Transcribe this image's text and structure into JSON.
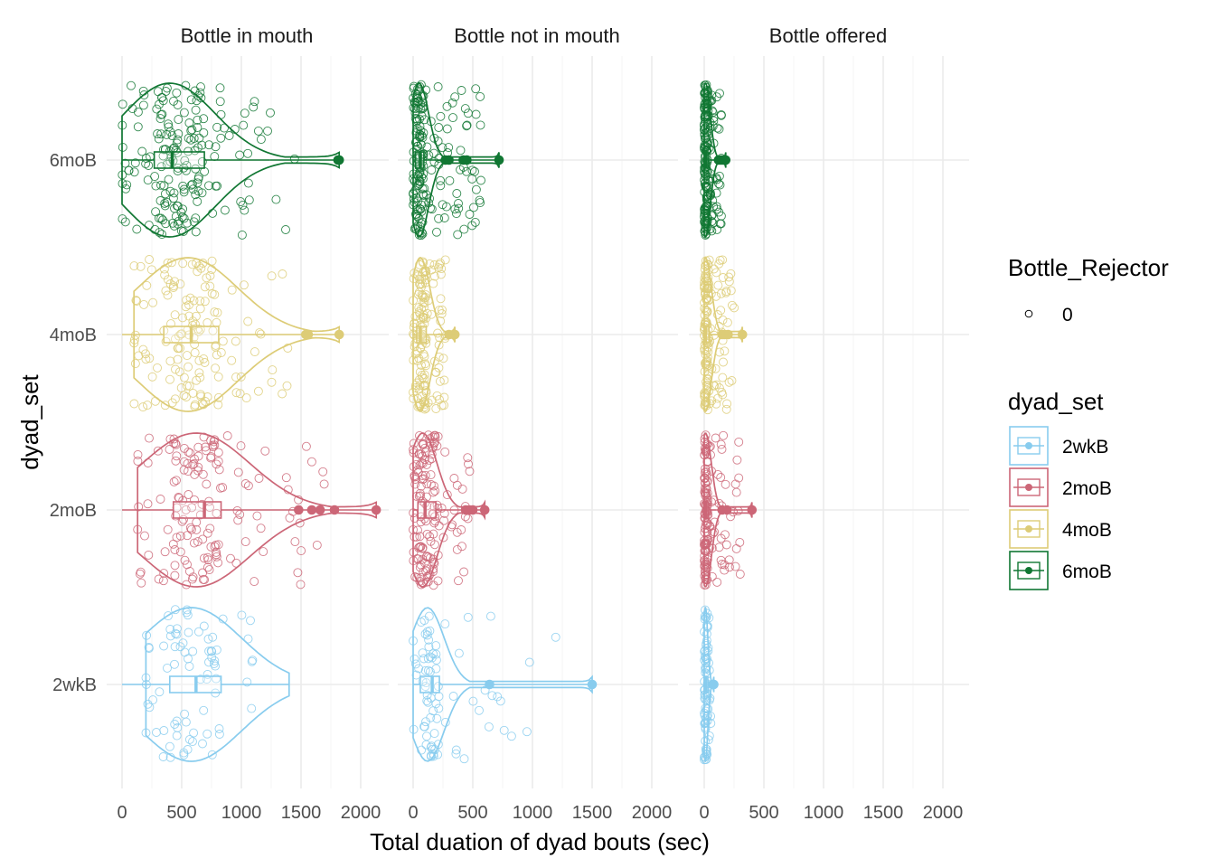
{
  "chart_data": {
    "type": "violin+box+jitter",
    "xlabel": "Total duation of dyad bouts (sec)",
    "ylabel": "dyad_set",
    "xlim": [
      0,
      2000
    ],
    "x_ticks": [
      0,
      500,
      1000,
      1500,
      2000
    ],
    "facets": [
      "Bottle in mouth",
      "Bottle not in mouth",
      "Bottle offered"
    ],
    "categories": [
      "2wkB",
      "2moB",
      "4moB",
      "6moB"
    ],
    "colors": {
      "2wkB": "#88CCEE",
      "2moB": "#CC6677",
      "4moB": "#DDCC77",
      "6moB": "#117733"
    },
    "shape_legend": {
      "title": "Bottle_Rejector",
      "items": [
        "0"
      ]
    },
    "color_legend": {
      "title": "dyad_set",
      "items": [
        "2wkB",
        "2moB",
        "4moB",
        "6moB"
      ]
    },
    "grid": true,
    "legend_position": "right",
    "series": [
      {
        "facet": "Bottle in mouth",
        "group": "6moB",
        "n": 190,
        "box": {
          "min": 0,
          "q1": 270,
          "median": 420,
          "q3": 690,
          "whisker_high": 1240
        },
        "outliers": [
          1810,
          1820
        ],
        "violin": {
          "min": 0,
          "max": 1820,
          "peak": 400,
          "spread": 380
        }
      },
      {
        "facet": "Bottle in mouth",
        "group": "4moB",
        "n": 150,
        "box": {
          "min": 0,
          "q1": 350,
          "median": 580,
          "q3": 810,
          "whisker_high": 1520
        },
        "outliers": [
          1540,
          1550,
          1560,
          1820
        ],
        "violin": {
          "min": 100,
          "max": 1820,
          "peak": 550,
          "spread": 420
        }
      },
      {
        "facet": "Bottle in mouth",
        "group": "2moB",
        "n": 150,
        "box": {
          "min": 0,
          "q1": 430,
          "median": 690,
          "q3": 830,
          "whisker_high": 1460
        },
        "outliers": [
          1480,
          1590,
          1660,
          1780,
          2130
        ],
        "violin": {
          "min": 130,
          "max": 2130,
          "peak": 620,
          "spread": 450
        }
      },
      {
        "facet": "Bottle in mouth",
        "group": "2wkB",
        "n": 80,
        "box": {
          "min": 0,
          "q1": 400,
          "median": 620,
          "q3": 830,
          "whisker_high": 1400
        },
        "outliers": [],
        "violin": {
          "min": 200,
          "max": 1400,
          "peak": 580,
          "spread": 420
        }
      },
      {
        "facet": "Bottle not in mouth",
        "group": "6moB",
        "n": 190,
        "box": {
          "min": 0,
          "q1": 20,
          "median": 60,
          "q3": 90,
          "whisker_high": 250
        },
        "outliers": [
          270,
          300,
          420,
          450,
          720
        ],
        "violin": {
          "min": 0,
          "max": 720,
          "peak": 50,
          "spread": 80
        }
      },
      {
        "facet": "Bottle not in mouth",
        "group": "4moB",
        "n": 150,
        "box": {
          "min": 0,
          "q1": 30,
          "median": 60,
          "q3": 110,
          "whisker_high": 250
        },
        "outliers": [
          300,
          350
        ],
        "violin": {
          "min": 0,
          "max": 350,
          "peak": 60,
          "spread": 80
        }
      },
      {
        "facet": "Bottle not in mouth",
        "group": "2moB",
        "n": 150,
        "box": {
          "min": 0,
          "q1": 40,
          "median": 100,
          "q3": 190,
          "whisker_high": 400
        },
        "outliers": [
          440,
          470,
          500,
          600
        ],
        "violin": {
          "min": 0,
          "max": 600,
          "peak": 80,
          "spread": 120
        }
      },
      {
        "facet": "Bottle not in mouth",
        "group": "2wkB",
        "n": 80,
        "box": {
          "min": 0,
          "q1": 60,
          "median": 160,
          "q3": 220,
          "whisker_high": 450
        },
        "outliers": [
          640,
          1500
        ],
        "violin": {
          "min": 0,
          "max": 1500,
          "peak": 120,
          "spread": 140
        }
      },
      {
        "facet": "Bottle offered",
        "group": "6moB",
        "n": 190,
        "box": {
          "min": 0,
          "q1": 0,
          "median": 10,
          "q3": 30,
          "whisker_high": 100
        },
        "outliers": [
          120,
          140,
          160,
          170,
          180
        ],
        "violin": {
          "min": 0,
          "max": 180,
          "peak": 10,
          "spread": 40
        }
      },
      {
        "facet": "Bottle offered",
        "group": "4moB",
        "n": 150,
        "box": {
          "min": 0,
          "q1": 0,
          "median": 10,
          "q3": 40,
          "whisker_high": 120
        },
        "outliers": [
          150,
          170,
          200,
          320
        ],
        "violin": {
          "min": 0,
          "max": 320,
          "peak": 10,
          "spread": 50
        }
      },
      {
        "facet": "Bottle offered",
        "group": "2moB",
        "n": 150,
        "box": {
          "min": 0,
          "q1": 0,
          "median": 10,
          "q3": 30,
          "whisker_high": 100
        },
        "outliers": [
          150,
          190,
          400
        ],
        "violin": {
          "min": 0,
          "max": 400,
          "peak": 10,
          "spread": 50
        }
      },
      {
        "facet": "Bottle offered",
        "group": "2wkB",
        "n": 80,
        "box": {
          "min": 0,
          "q1": 0,
          "median": 10,
          "q3": 30,
          "whisker_high": 60
        },
        "outliers": [
          70,
          80
        ],
        "violin": {
          "min": 0,
          "max": 80,
          "peak": 10,
          "spread": 20
        }
      }
    ]
  }
}
